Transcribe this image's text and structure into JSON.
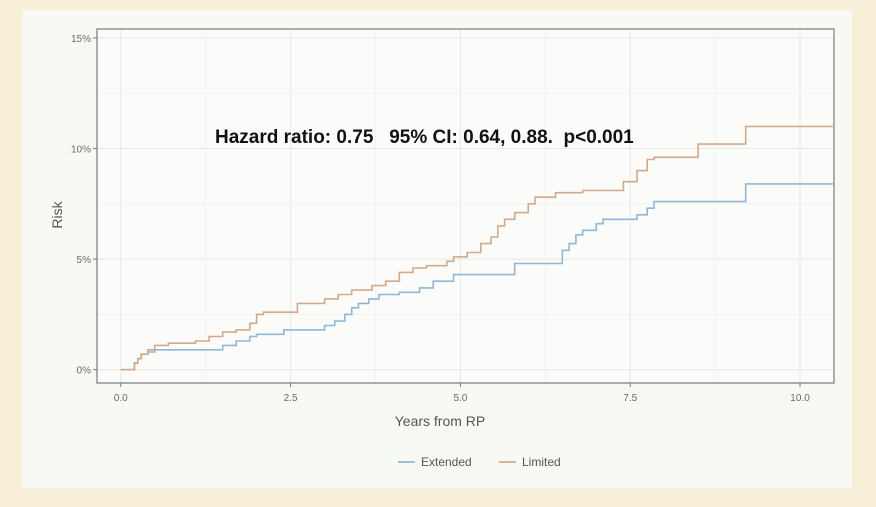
{
  "chart_data": {
    "type": "line",
    "title": "",
    "xlabel": "Years from RP",
    "ylabel": "Risk",
    "xlim": [
      -0.35,
      10.5
    ],
    "ylim": [
      -0.6,
      15.4
    ],
    "x_ticks": [
      0.0,
      2.5,
      5.0,
      7.5,
      10.0
    ],
    "x_tick_labels": [
      "0.0",
      "2.5",
      "5.0",
      "7.5",
      "10.0"
    ],
    "y_ticks": [
      0,
      5,
      10,
      15
    ],
    "y_tick_labels": [
      "0%",
      "5%",
      "10%",
      "15%"
    ],
    "grid": true,
    "legend": "bottom",
    "annotation": "Hazard ratio: 0.75   95% CI: 0.64, 0.88.  p<0.001",
    "series": [
      {
        "name": "Extended",
        "color": "#8fb8d4",
        "points": [
          [
            0,
            0
          ],
          [
            0.15,
            0
          ],
          [
            0.2,
            0.3
          ],
          [
            0.25,
            0.5
          ],
          [
            0.3,
            0.7
          ],
          [
            0.4,
            0.8
          ],
          [
            0.5,
            0.9
          ],
          [
            1.3,
            0.9
          ],
          [
            1.5,
            1.1
          ],
          [
            1.7,
            1.3
          ],
          [
            1.9,
            1.5
          ],
          [
            2.0,
            1.6
          ],
          [
            2.3,
            1.6
          ],
          [
            2.4,
            1.8
          ],
          [
            2.8,
            1.8
          ],
          [
            3.0,
            2.0
          ],
          [
            3.15,
            2.2
          ],
          [
            3.3,
            2.5
          ],
          [
            3.4,
            2.8
          ],
          [
            3.5,
            3.0
          ],
          [
            3.65,
            3.2
          ],
          [
            3.8,
            3.4
          ],
          [
            4.1,
            3.5
          ],
          [
            4.4,
            3.7
          ],
          [
            4.6,
            4.0
          ],
          [
            4.9,
            4.3
          ],
          [
            5.7,
            4.3
          ],
          [
            5.8,
            4.8
          ],
          [
            6.4,
            4.8
          ],
          [
            6.5,
            5.4
          ],
          [
            6.6,
            5.7
          ],
          [
            6.7,
            6.1
          ],
          [
            6.8,
            6.3
          ],
          [
            7.0,
            6.6
          ],
          [
            7.1,
            6.8
          ],
          [
            7.6,
            7.0
          ],
          [
            7.75,
            7.3
          ],
          [
            7.85,
            7.6
          ],
          [
            9.15,
            7.6
          ],
          [
            9.2,
            8.4
          ],
          [
            10.5,
            8.4
          ]
        ]
      },
      {
        "name": "Limited",
        "color": "#d4a98a",
        "points": [
          [
            0,
            0
          ],
          [
            0.15,
            0
          ],
          [
            0.2,
            0.3
          ],
          [
            0.25,
            0.5
          ],
          [
            0.3,
            0.7
          ],
          [
            0.4,
            0.9
          ],
          [
            0.5,
            1.1
          ],
          [
            0.7,
            1.2
          ],
          [
            1.1,
            1.3
          ],
          [
            1.3,
            1.5
          ],
          [
            1.5,
            1.7
          ],
          [
            1.7,
            1.8
          ],
          [
            1.9,
            2.1
          ],
          [
            2.0,
            2.5
          ],
          [
            2.1,
            2.6
          ],
          [
            2.6,
            3.0
          ],
          [
            3.0,
            3.2
          ],
          [
            3.2,
            3.4
          ],
          [
            3.4,
            3.6
          ],
          [
            3.7,
            3.8
          ],
          [
            3.9,
            4.0
          ],
          [
            4.1,
            4.4
          ],
          [
            4.3,
            4.6
          ],
          [
            4.5,
            4.7
          ],
          [
            4.8,
            4.9
          ],
          [
            4.9,
            5.1
          ],
          [
            5.1,
            5.3
          ],
          [
            5.3,
            5.7
          ],
          [
            5.45,
            6.0
          ],
          [
            5.55,
            6.5
          ],
          [
            5.65,
            6.8
          ],
          [
            5.8,
            7.1
          ],
          [
            6.0,
            7.5
          ],
          [
            6.1,
            7.8
          ],
          [
            6.4,
            8.0
          ],
          [
            6.8,
            8.1
          ],
          [
            7.4,
            8.5
          ],
          [
            7.6,
            9.0
          ],
          [
            7.75,
            9.5
          ],
          [
            7.85,
            9.6
          ],
          [
            8.5,
            10.2
          ],
          [
            9.2,
            11.0
          ],
          [
            10.5,
            11.0
          ]
        ]
      }
    ]
  }
}
